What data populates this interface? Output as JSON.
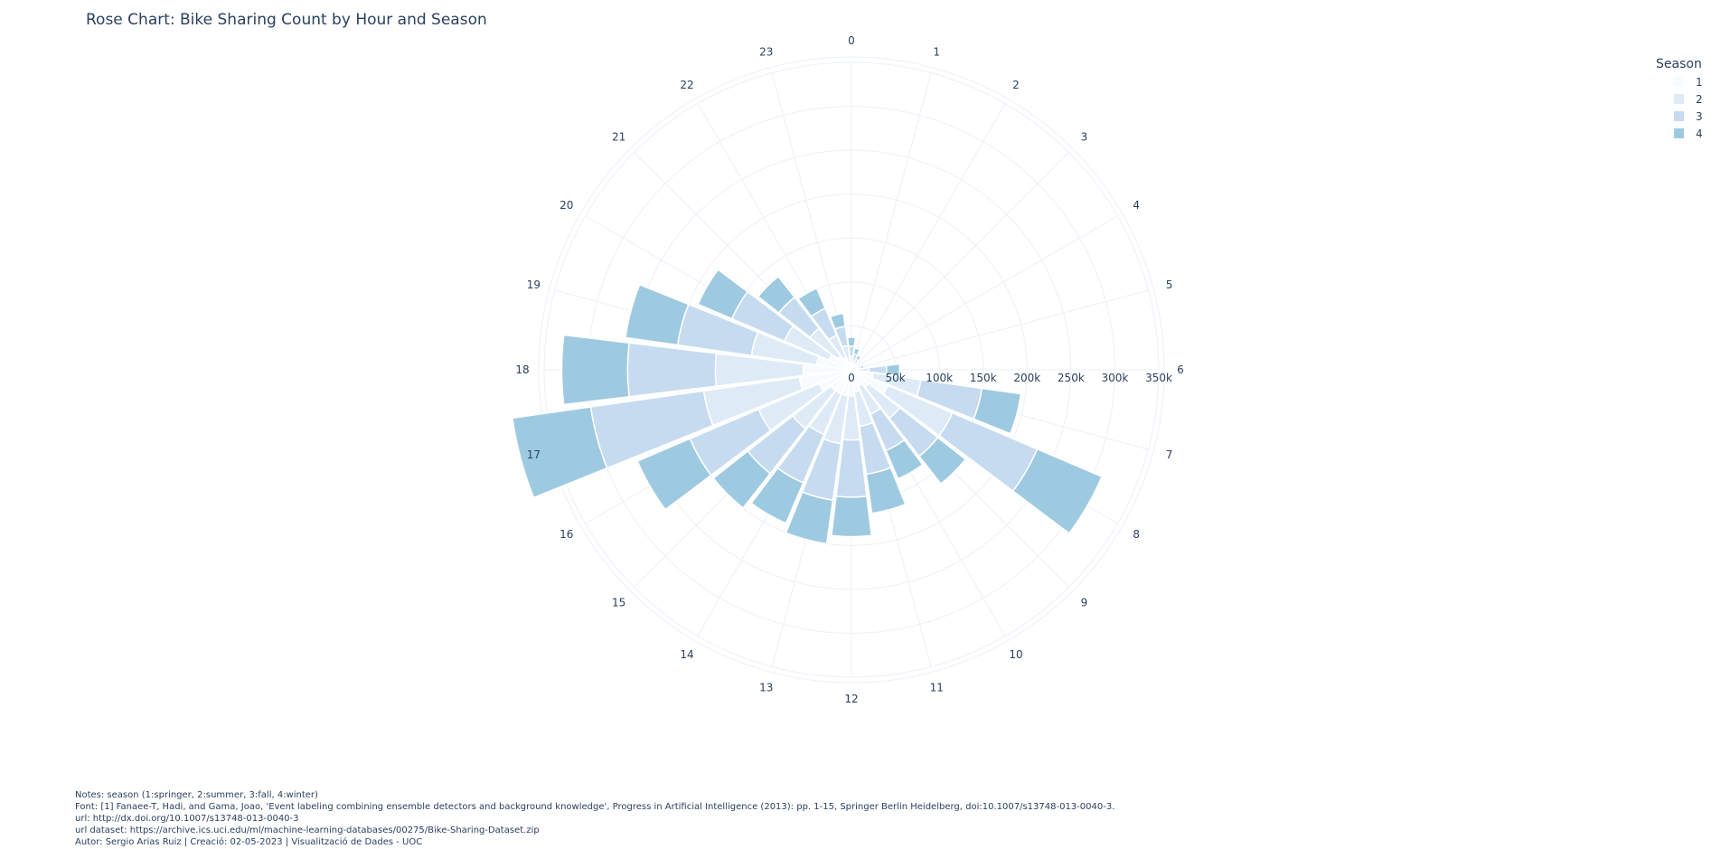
{
  "title": "Rose Chart: Bike Sharing Count by Hour and Season",
  "legend": {
    "title": "Season",
    "items": [
      {
        "label": "1",
        "color": "#f7fbff"
      },
      {
        "label": "2",
        "color": "#deebf7"
      },
      {
        "label": "3",
        "color": "#c6dbef"
      },
      {
        "label": "4",
        "color": "#9ecae1"
      }
    ]
  },
  "notes": [
    "Notes: season (1:springer, 2:summer, 3:fall, 4:winter)",
    "Font: [1] Fanaee-T, Hadi, and Gama, Joao, 'Event labeling combining ensemble detectors and background knowledge', Progress in Artificial Intelligence (2013): pp. 1-15, Springer Berlin Heidelberg, doi:10.1007/s13748-013-0040-3.",
    "url: http://dx.doi.org/10.1007/s13748-013-0040-3",
    "url dataset: https://archive.ics.uci.edu/ml/machine-learning-databases/00275/Bike-Sharing-Dataset.zip",
    "Autor: Sergio Arias Ruiz | Creació: 02-05-2023 | Visualització de Dades - UOC"
  ],
  "chart_data": {
    "type": "barpolar",
    "stacked": true,
    "angular_axis": {
      "direction": "clockwise",
      "rotation": "0 at top",
      "ticks": [
        "0",
        "1",
        "2",
        "3",
        "4",
        "5",
        "6",
        "7",
        "8",
        "9",
        "10",
        "11",
        "12",
        "13",
        "14",
        "15",
        "16",
        "17",
        "18",
        "19",
        "20",
        "21",
        "22",
        "23"
      ]
    },
    "radial_axis": {
      "range": [
        0,
        350000
      ],
      "ticks": [
        0,
        50000,
        100000,
        150000,
        200000,
        250000,
        300000,
        350000
      ],
      "tick_labels": [
        "0",
        "50k",
        "100k",
        "150k",
        "200k",
        "250k",
        "300k",
        "350k"
      ]
    },
    "categories": [
      "0",
      "1",
      "2",
      "3",
      "4",
      "5",
      "6",
      "7",
      "8",
      "9",
      "10",
      "11",
      "12",
      "13",
      "14",
      "15",
      "16",
      "17",
      "18",
      "19",
      "20",
      "21",
      "22",
      "23"
    ],
    "series": [
      {
        "name": "1",
        "color": "#f7fbff",
        "values": [
          5000,
          3000,
          2000,
          1000,
          500,
          1500,
          5000,
          25000,
          45000,
          25000,
          20000,
          25000,
          30000,
          30000,
          30000,
          30000,
          40000,
          60000,
          55000,
          40000,
          28000,
          20000,
          15000,
          10000
        ]
      },
      {
        "name": "2",
        "color": "#deebf7",
        "values": [
          10000,
          7000,
          5000,
          2500,
          1000,
          4000,
          15000,
          55000,
          80000,
          45000,
          35000,
          40000,
          50000,
          55000,
          50000,
          55000,
          75000,
          110000,
          100000,
          75000,
          55000,
          40000,
          28000,
          18000
        ]
      },
      {
        "name": "3",
        "color": "#c6dbef",
        "values": [
          12000,
          8000,
          6000,
          3000,
          1200,
          5000,
          20000,
          70000,
          105000,
          55000,
          45000,
          55000,
          65000,
          65000,
          60000,
          65000,
          85000,
          130000,
          100000,
          85000,
          65000,
          45000,
          33000,
          22000
        ]
      },
      {
        "name": "4",
        "color": "#9ecae1",
        "values": [
          10000,
          7000,
          5000,
          2500,
          1000,
          4000,
          15000,
          45000,
          80000,
          40000,
          35000,
          45000,
          45000,
          50000,
          50000,
          50000,
          65000,
          90000,
          75000,
          60000,
          42000,
          30000,
          25000,
          15000
        ]
      }
    ]
  }
}
